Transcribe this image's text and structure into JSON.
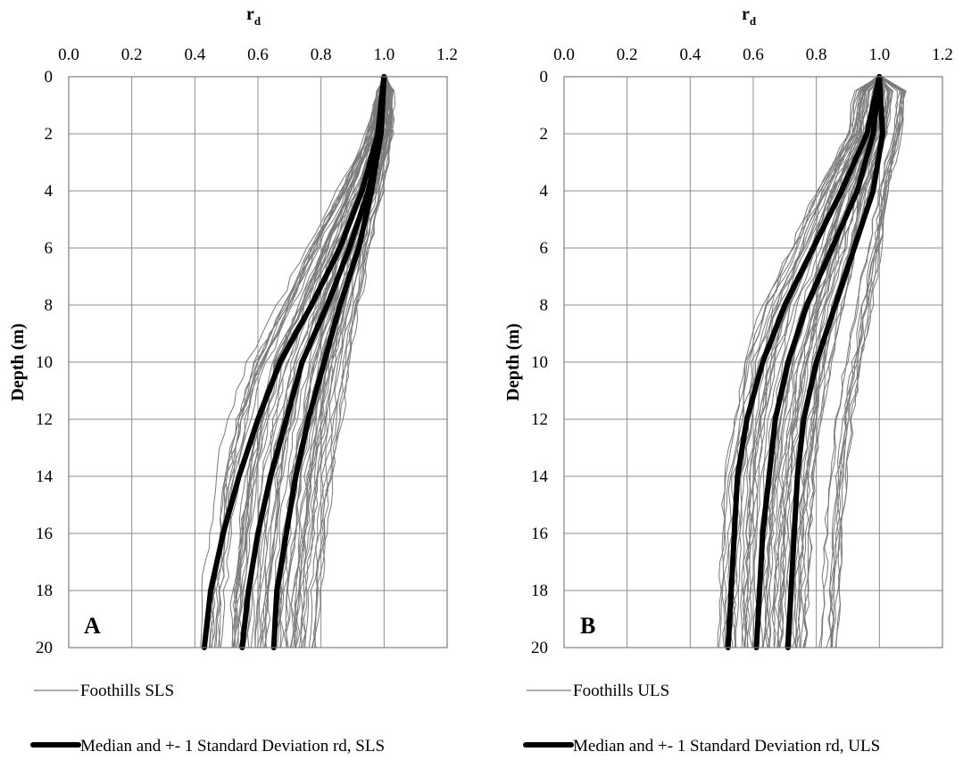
{
  "colors": {
    "sample_line": "#7a7a7a",
    "stat_line": "#000000",
    "grid": "#8c8c8c"
  },
  "chart_data": [
    {
      "type": "line",
      "panel_label": "A",
      "title": "",
      "xlabel": "r",
      "xlabel_sub": "d",
      "ylabel": "Depth (m)",
      "xlim": [
        0.0,
        1.2
      ],
      "ylim": [
        20,
        0
      ],
      "y_inverted": true,
      "grid": true,
      "xticks": [
        "0.0",
        "0.2",
        "0.4",
        "0.6",
        "0.8",
        "1.0",
        "1.2"
      ],
      "yticks": [
        "0",
        "2",
        "4",
        "6",
        "8",
        "10",
        "12",
        "14",
        "16",
        "18",
        "20"
      ],
      "legend": [
        {
          "label": "Foothills SLS",
          "style": "thin-gray"
        },
        {
          "label": "Median and +- 1 Standard Deviation rd, SLS",
          "style": "thick-black"
        }
      ],
      "stat_series": [
        {
          "name": "-1 SD",
          "x": [
            1.0,
            0.98,
            0.93,
            0.86,
            0.77,
            0.67,
            0.6,
            0.54,
            0.49,
            0.45,
            0.43
          ],
          "y": [
            0,
            2,
            4,
            6,
            8,
            10,
            12,
            14,
            16,
            18,
            20
          ]
        },
        {
          "name": "Median",
          "x": [
            1.0,
            0.99,
            0.95,
            0.89,
            0.82,
            0.74,
            0.69,
            0.64,
            0.6,
            0.57,
            0.55
          ],
          "y": [
            0,
            2,
            4,
            6,
            8,
            10,
            12,
            14,
            16,
            18,
            20
          ]
        },
        {
          "name": "+1 SD",
          "x": [
            1.0,
            0.99,
            0.96,
            0.92,
            0.86,
            0.81,
            0.76,
            0.72,
            0.69,
            0.66,
            0.65
          ],
          "y": [
            0,
            2,
            4,
            6,
            8,
            10,
            12,
            14,
            16,
            18,
            20
          ]
        }
      ],
      "sample_envelope": {
        "y": [
          0,
          2,
          4,
          6,
          8,
          10,
          12,
          14,
          16,
          18,
          20
        ],
        "x_min": [
          0.99,
          0.94,
          0.85,
          0.75,
          0.66,
          0.56,
          0.5,
          0.46,
          0.44,
          0.42,
          0.41
        ],
        "x_max": [
          1.03,
          1.03,
          1.0,
          0.96,
          0.93,
          0.9,
          0.88,
          0.85,
          0.83,
          0.81,
          0.8
        ]
      },
      "sample_count": 60
    },
    {
      "type": "line",
      "panel_label": "B",
      "title": "",
      "xlabel": "r",
      "xlabel_sub": "d",
      "ylabel": "Depth (m)",
      "xlim": [
        0.0,
        1.2
      ],
      "ylim": [
        20,
        0
      ],
      "y_inverted": true,
      "grid": true,
      "xticks": [
        "0.0",
        "0.2",
        "0.4",
        "0.6",
        "0.8",
        "1.0",
        "1.2"
      ],
      "yticks": [
        "0",
        "2",
        "4",
        "6",
        "8",
        "10",
        "12",
        "14",
        "16",
        "18",
        "20"
      ],
      "legend": [
        {
          "label": "Foothills ULS",
          "style": "thin-gray"
        },
        {
          "label": "Median and +- 1 Standard Deviation rd, ULS",
          "style": "thick-black"
        }
      ],
      "stat_series": [
        {
          "name": "-1 SD",
          "x": [
            1.0,
            0.96,
            0.88,
            0.79,
            0.7,
            0.63,
            0.58,
            0.55,
            0.54,
            0.53,
            0.52
          ],
          "y": [
            0,
            2,
            4,
            6,
            8,
            10,
            12,
            14,
            16,
            18,
            20
          ]
        },
        {
          "name": "Median",
          "x": [
            1.0,
            0.98,
            0.93,
            0.85,
            0.77,
            0.71,
            0.67,
            0.65,
            0.63,
            0.62,
            0.61
          ],
          "y": [
            0,
            2,
            4,
            6,
            8,
            10,
            12,
            14,
            16,
            18,
            20
          ]
        },
        {
          "name": "+1 SD",
          "x": [
            1.0,
            1.01,
            0.98,
            0.92,
            0.86,
            0.8,
            0.76,
            0.74,
            0.73,
            0.72,
            0.71
          ],
          "y": [
            0,
            2,
            4,
            6,
            8,
            10,
            12,
            14,
            16,
            18,
            20
          ]
        }
      ],
      "sample_envelope": {
        "y": [
          0,
          2,
          4,
          6,
          8,
          10,
          12,
          14,
          16,
          18,
          20
        ],
        "x_min": [
          0.93,
          0.9,
          0.8,
          0.72,
          0.63,
          0.57,
          0.54,
          0.51,
          0.5,
          0.49,
          0.49
        ],
        "x_max": [
          1.09,
          1.07,
          1.03,
          1.01,
          0.98,
          0.95,
          0.92,
          0.9,
          0.89,
          0.88,
          0.87
        ]
      },
      "sample_count": 60
    }
  ]
}
